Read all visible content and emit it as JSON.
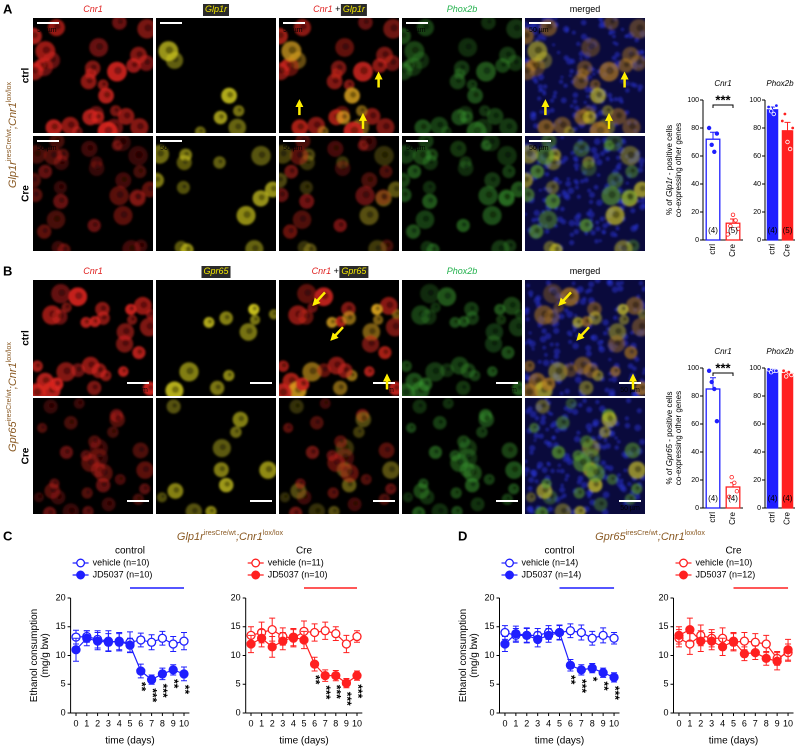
{
  "figure": {
    "panels": [
      {
        "letter": "A",
        "genotype": {
          "gene1": "Glp1r",
          "sup1": "iresCre/wt",
          "sep": ";",
          "gene2": "Cnr1",
          "sup2": "lox/lox"
        },
        "headers": [
          [
            {
              "text": "Cnr1",
              "style": "red"
            }
          ],
          [
            {
              "text": "Glp1r",
              "style": "yellowbox"
            }
          ],
          [
            {
              "text": "Cnr1",
              "style": "red"
            },
            {
              "text": " + ",
              "style": "plain"
            },
            {
              "text": "Glp1r",
              "style": "yellowbox"
            }
          ],
          [
            {
              "text": "Phox2b",
              "style": "green"
            }
          ],
          [
            {
              "text": "merged",
              "style": "plain"
            }
          ]
        ],
        "rows": [
          "ctrl",
          "Cre"
        ],
        "scale_bar": "50 µm"
      },
      {
        "letter": "B",
        "genotype": {
          "gene1": "Gpr65",
          "sup1": "iresCre/wt",
          "sep": ";",
          "gene2": "Cnr1",
          "sup2": "lox/lox"
        },
        "headers": [
          [
            {
              "text": "Cnr1",
              "style": "red"
            }
          ],
          [
            {
              "text": "Gpr65",
              "style": "yellowbox"
            }
          ],
          [
            {
              "text": "Cnr1",
              "style": "red"
            },
            {
              "text": " + ",
              "style": "plain"
            },
            {
              "text": "Gpr65",
              "style": "yellowbox"
            }
          ],
          [
            {
              "text": "Phox2b",
              "style": "green"
            }
          ],
          [
            {
              "text": "merged",
              "style": "plain"
            }
          ]
        ],
        "rows": [
          "ctrl",
          "Cre"
        ],
        "scale_bar": "50 µm"
      },
      {
        "letter": "C",
        "genotype": {
          "gene1": "Glp1r",
          "sup1": "iresCre/wt",
          "sep": ";",
          "gene2": "Cnr1",
          "sup2": "lox/lox"
        }
      },
      {
        "letter": "D",
        "genotype": {
          "gene1": "Gpr65",
          "sup1": "iresCre/wt",
          "sep": ";",
          "gene2": "Cnr1",
          "sup2": "lox/lox"
        }
      }
    ]
  },
  "chart_data": [
    {
      "type": "bar",
      "title": "Cnr1",
      "categories": [
        "ctrl",
        "Cre"
      ],
      "values": [
        72,
        12
      ],
      "errors": [
        5,
        3
      ],
      "points": [
        [
          80,
          68,
          63,
          76
        ],
        [
          4,
          10,
          18,
          14,
          8
        ]
      ],
      "n_labels": [
        "(4)",
        "(5)"
      ],
      "colors": [
        "#1f1fff",
        "#ff2020"
      ],
      "filled": false,
      "ylim": [
        0,
        100
      ],
      "yticks": [
        0,
        20,
        40,
        60,
        80,
        100
      ],
      "annotation": "***",
      "ylabel": [
        {
          "text": "% of "
        },
        {
          "text": "Glp1r",
          "italic": true
        },
        {
          "text": " - positive cells"
        }
      ],
      "ylabel2": "co-expressing other genes"
    },
    {
      "type": "bar",
      "title": "Phox2b",
      "categories": [
        "ctrl",
        "Cre"
      ],
      "values": [
        93,
        78
      ],
      "errors": [
        2,
        6
      ],
      "points": [
        [
          95,
          92,
          90,
          96
        ],
        [
          85,
          90,
          70,
          65,
          80
        ]
      ],
      "n_labels": [
        "(4)",
        "(5)"
      ],
      "colors": [
        "#1f1fff",
        "#ff2020"
      ],
      "filled": true,
      "ylim": [
        0,
        100
      ],
      "yticks": [
        0,
        20,
        40,
        60,
        80,
        100
      ]
    },
    {
      "type": "bar",
      "title": "Cnr1",
      "categories": [
        "ctrl",
        "Cre"
      ],
      "values": [
        85,
        15
      ],
      "errors": [
        8,
        3
      ],
      "points": [
        [
          98,
          90,
          85,
          62
        ],
        [
          8,
          22,
          18,
          12
        ]
      ],
      "n_labels": [
        "(4)",
        "(4)"
      ],
      "colors": [
        "#1f1fff",
        "#ff2020"
      ],
      "filled": false,
      "ylim": [
        0,
        100
      ],
      "yticks": [
        0,
        20,
        40,
        60,
        80,
        100
      ],
      "annotation": "***",
      "ylabel": [
        {
          "text": "% of "
        },
        {
          "text": "Gpr65",
          "italic": true
        },
        {
          "text": " - positive cells"
        }
      ],
      "ylabel2": "co-expressing other genes"
    },
    {
      "type": "bar",
      "title": "Phox2b",
      "categories": [
        "ctrl",
        "Cre"
      ],
      "values": [
        98,
        96
      ],
      "errors": [
        1,
        1
      ],
      "points": [
        [
          99,
          97,
          98,
          98
        ],
        [
          98,
          94,
          97,
          95
        ]
      ],
      "n_labels": [
        "(4)",
        "(4)"
      ],
      "colors": [
        "#1f1fff",
        "#ff2020"
      ],
      "filled": true,
      "ylim": [
        0,
        100
      ],
      "yticks": [
        0,
        20,
        40,
        60,
        80,
        100
      ]
    },
    {
      "type": "line",
      "title": "control",
      "x": [
        0,
        1,
        2,
        3,
        4,
        5,
        6,
        7,
        8,
        9,
        10
      ],
      "xlim": [
        -0.5,
        10.5
      ],
      "xticks": [
        0,
        1,
        2,
        3,
        4,
        5,
        6,
        7,
        8,
        9,
        10
      ],
      "ylim": [
        0,
        20
      ],
      "yticks": [
        0,
        5,
        10,
        15,
        20
      ],
      "xlabel": "time (days)",
      "ylabel": [
        "Ethanol consumption",
        "(mg/g bw)"
      ],
      "treatment_period": [
        5,
        10
      ],
      "series": [
        {
          "name": "vehicle (n=10)",
          "color": "#1f1fff",
          "filled": false,
          "values": [
            13.2,
            13.3,
            12.8,
            12.5,
            12.3,
            12.3,
            12.7,
            12.3,
            13.0,
            12.0,
            12.5
          ],
          "errors": [
            1.2,
            1.0,
            1.5,
            1.8,
            1.5,
            1.8,
            1.2,
            1.3,
            1.2,
            1.3,
            1.5
          ]
        },
        {
          "name": "JD5037 (n=10)",
          "color": "#1f1fff",
          "filled": true,
          "values": [
            11.0,
            13.0,
            12.5,
            12.3,
            12.5,
            11.8,
            7.3,
            5.8,
            6.8,
            7.5,
            6.8
          ],
          "errors": [
            2.0,
            1.3,
            1.5,
            1.5,
            1.5,
            1.2,
            1.2,
            0.8,
            1.0,
            0.9,
            1.2
          ]
        }
      ],
      "annotations": [
        {
          "x": 6,
          "text": "**"
        },
        {
          "x": 7,
          "text": "***"
        },
        {
          "x": 8,
          "text": "***"
        },
        {
          "x": 9,
          "text": "**"
        },
        {
          "x": 10,
          "text": "**"
        }
      ]
    },
    {
      "type": "line",
      "title": "Cre",
      "x": [
        0,
        1,
        2,
        3,
        4,
        5,
        6,
        7,
        8,
        9,
        10
      ],
      "xlim": [
        -0.5,
        10.5
      ],
      "xticks": [
        0,
        1,
        2,
        3,
        4,
        5,
        6,
        7,
        8,
        9,
        10
      ],
      "ylim": [
        0,
        20
      ],
      "yticks": [
        0,
        5,
        10,
        15,
        20
      ],
      "xlabel": "time (days)",
      "treatment_period": [
        5,
        10
      ],
      "series": [
        {
          "name": "vehicle (n=11)",
          "color": "#ff2020",
          "filled": false,
          "values": [
            13.5,
            14.0,
            14.5,
            13.3,
            13.0,
            14.2,
            14.0,
            14.3,
            13.8,
            12.0,
            13.3
          ],
          "errors": [
            1.5,
            1.8,
            2.0,
            1.5,
            1.5,
            1.8,
            1.5,
            1.5,
            1.2,
            1.5,
            1.0
          ]
        },
        {
          "name": "JD5037 (n=10)",
          "color": "#ff2020",
          "filled": true,
          "values": [
            12.0,
            13.0,
            11.5,
            12.5,
            13.2,
            12.7,
            8.5,
            6.5,
            6.5,
            5.2,
            6.5
          ],
          "errors": [
            1.5,
            1.5,
            1.8,
            1.5,
            1.5,
            1.5,
            1.2,
            1.0,
            0.9,
            0.8,
            0.8
          ]
        }
      ],
      "annotations": [
        {
          "x": 6,
          "text": "**"
        },
        {
          "x": 7,
          "text": "***"
        },
        {
          "x": 8,
          "text": "***"
        },
        {
          "x": 9,
          "text": "***"
        },
        {
          "x": 10,
          "text": "***"
        }
      ]
    },
    {
      "type": "line",
      "title": "control",
      "x": [
        0,
        1,
        2,
        3,
        4,
        5,
        6,
        7,
        8,
        9,
        10
      ],
      "xlim": [
        -0.5,
        10.5
      ],
      "xticks": [
        0,
        1,
        2,
        3,
        4,
        5,
        6,
        7,
        8,
        9,
        10
      ],
      "ylim": [
        0,
        20
      ],
      "yticks": [
        0,
        5,
        10,
        15,
        20
      ],
      "xlabel": "time (days)",
      "ylabel": [
        "Ethanol consumption",
        "(mg/g bw)"
      ],
      "treatment_period": [
        5,
        10
      ],
      "series": [
        {
          "name": "vehicle (n=14)",
          "color": "#1f1fff",
          "filled": false,
          "values": [
            14.0,
            13.5,
            13.5,
            13.5,
            14.0,
            14.0,
            14.3,
            14.0,
            13.0,
            13.5,
            13.0
          ],
          "errors": [
            1.2,
            1.2,
            1.3,
            1.2,
            1.2,
            1.3,
            1.2,
            1.3,
            1.2,
            1.3,
            1.0
          ]
        },
        {
          "name": "JD5037 (n=14)",
          "color": "#1f1fff",
          "filled": true,
          "values": [
            12.0,
            13.8,
            13.5,
            12.8,
            13.5,
            14.0,
            8.3,
            7.5,
            7.8,
            7.0,
            6.2
          ],
          "errors": [
            1.3,
            1.3,
            1.2,
            1.3,
            1.2,
            1.2,
            1.0,
            0.9,
            0.8,
            0.8,
            0.8
          ]
        }
      ],
      "annotations": [
        {
          "x": 6,
          "text": "**"
        },
        {
          "x": 7,
          "text": "***"
        },
        {
          "x": 8,
          "text": "*"
        },
        {
          "x": 9,
          "text": "**"
        },
        {
          "x": 10,
          "text": "***"
        }
      ]
    },
    {
      "type": "line",
      "title": "Cre",
      "x": [
        0,
        1,
        2,
        3,
        4,
        5,
        6,
        7,
        8,
        9,
        10
      ],
      "xlim": [
        -0.5,
        10.5
      ],
      "xticks": [
        0,
        1,
        2,
        3,
        4,
        5,
        6,
        7,
        8,
        9,
        10
      ],
      "ylim": [
        0,
        20
      ],
      "yticks": [
        0,
        5,
        10,
        15,
        20
      ],
      "xlabel": "time (days)",
      "treatment_period": [
        5,
        10
      ],
      "series": [
        {
          "name": "vehicle (n=10)",
          "color": "#ff2020",
          "filled": false,
          "values": [
            13.0,
            12.0,
            13.5,
            13.0,
            13.0,
            12.3,
            12.5,
            12.3,
            12.0,
            9.5,
            10.5
          ],
          "errors": [
            1.5,
            1.8,
            1.8,
            1.5,
            1.8,
            1.5,
            1.5,
            1.5,
            1.5,
            1.2,
            1.5
          ]
        },
        {
          "name": "JD5037 (n=12)",
          "color": "#ff2020",
          "filled": true,
          "values": [
            13.5,
            14.5,
            12.5,
            12.5,
            11.5,
            12.5,
            10.3,
            10.5,
            9.5,
            9.0,
            11.0
          ],
          "errors": [
            1.5,
            2.0,
            1.8,
            1.5,
            1.5,
            1.5,
            1.2,
            1.2,
            1.2,
            1.5,
            1.8
          ]
        }
      ],
      "annotations": []
    }
  ]
}
